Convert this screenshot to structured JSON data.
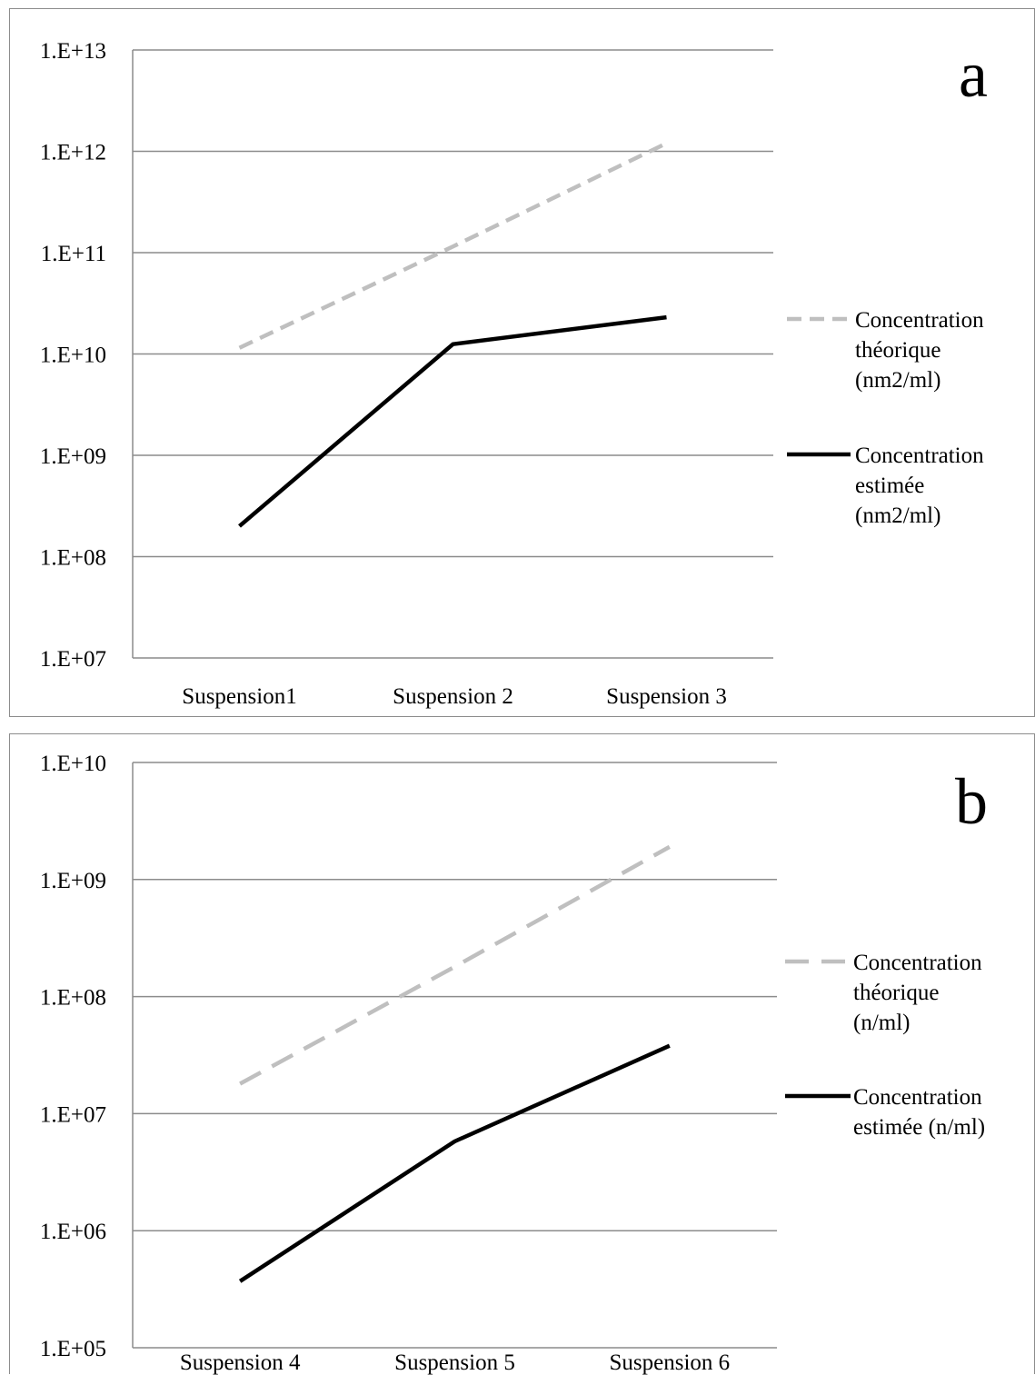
{
  "charts": [
    {
      "panel_label": "a",
      "chart_data": {
        "type": "line",
        "scale": "log",
        "categories": [
          "Suspension1",
          "Suspension 2",
          "Suspension 3"
        ],
        "ytick_labels": [
          "1.E+07",
          "1.E+08",
          "1.E+09",
          "1.E+10",
          "1.E+11",
          "1.E+12",
          "1.E+13"
        ],
        "ylim": [
          10000000,
          10000000000000
        ],
        "grid": true,
        "legend_position": "right",
        "series": [
          {
            "legend_lines": [
              "Concentration",
              "théorique",
              "(nm2/ml)"
            ],
            "values": [
              11500000000,
              115000000000,
              1200000000000
            ],
            "color": "#bfbfbf",
            "style": "dashed"
          },
          {
            "legend_lines": [
              "Concentration",
              "estimée",
              "(nm2/ml)"
            ],
            "values": [
              200000000,
              12500000000,
              23000000000
            ],
            "color": "#000000",
            "style": "solid"
          }
        ]
      }
    },
    {
      "panel_label": "b",
      "chart_data": {
        "type": "line",
        "scale": "log",
        "categories": [
          "Suspension 4",
          "Suspension 5",
          "Suspension 6"
        ],
        "ytick_labels": [
          "1.E+05",
          "1.E+06",
          "1.E+07",
          "1.E+08",
          "1.E+09",
          "1.E+10"
        ],
        "ylim": [
          100000,
          10000000000
        ],
        "grid": true,
        "legend_position": "right",
        "series": [
          {
            "legend_lines": [
              "Concentration",
              "théorique",
              "(n/ml)"
            ],
            "values": [
              18000000,
              180000000,
              1900000000
            ],
            "color": "#bfbfbf",
            "style": "dashed"
          },
          {
            "legend_lines": [
              "Concentration",
              "estimée (n/ml)"
            ],
            "values": [
              370000,
              5800000,
              38000000
            ],
            "color": "#000000",
            "style": "solid"
          }
        ]
      }
    }
  ]
}
